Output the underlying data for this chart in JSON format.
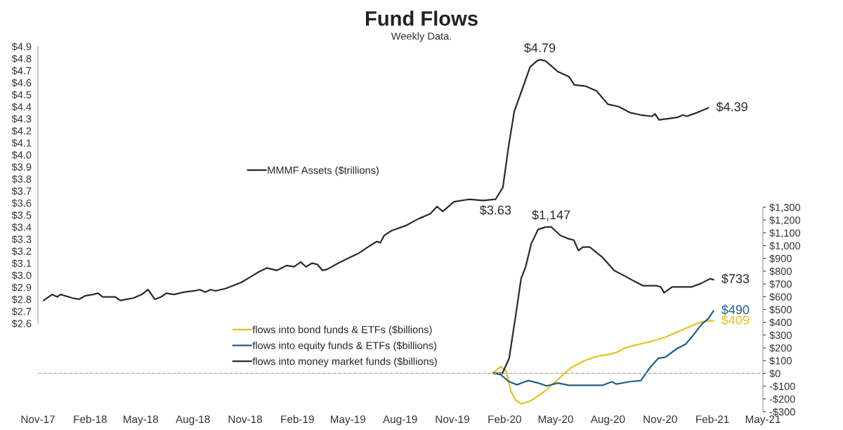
{
  "chart_data": [
    {
      "type": "line",
      "title": "Fund Flows",
      "annotations": [
        "Weekly Data."
      ],
      "xlim": [
        "2017-11-01",
        "2021-05-01"
      ],
      "tick_labels": "y",
      "ylim": [
        2.6,
        4.9
      ],
      "yticks": [
        {
          "value": 2.6,
          "label": "$2.6"
        },
        {
          "value": 2.7,
          "label": "$2.7"
        },
        {
          "value": 2.8,
          "label": "$2.8"
        },
        {
          "value": 2.9,
          "label": "$2.9"
        },
        {
          "value": 3.0,
          "label": "$3.0"
        },
        {
          "value": 3.1,
          "label": "$3.1"
        },
        {
          "value": 3.2,
          "label": "$3.2"
        },
        {
          "value": 3.3,
          "label": "$3.3"
        },
        {
          "value": 3.4,
          "label": "$3.4"
        },
        {
          "value": 3.5,
          "label": "$3.5"
        },
        {
          "value": 3.6,
          "label": "$3.6"
        },
        {
          "value": 3.7,
          "label": "$3.7"
        },
        {
          "value": 3.8,
          "label": "$3.8"
        },
        {
          "value": 3.9,
          "label": "$3.9"
        },
        {
          "value": 4.0,
          "label": "$4.0"
        },
        {
          "value": 4.1,
          "label": "$4.1"
        },
        {
          "value": 4.2,
          "label": "$4.2"
        },
        {
          "value": 4.3,
          "label": "$4.3"
        },
        {
          "value": 4.4,
          "label": "$4.4"
        },
        {
          "value": 4.5,
          "label": "$4.5"
        },
        {
          "value": 4.6,
          "label": "$4.6"
        },
        {
          "value": 4.7,
          "label": "$4.7"
        },
        {
          "value": 4.8,
          "label": "$4.8"
        },
        {
          "value": 4.9,
          "label": "$4.9"
        }
      ],
      "legend": "center",
      "series": [
        {
          "name": "MMMF Assets ($trillions)",
          "color": "#2b2b2b",
          "x": [
            "2017-11-11",
            "2017-11-26",
            "2017-12-05",
            "2017-12-11",
            "2018-01-01",
            "2018-01-12",
            "2018-01-24",
            "2018-02-06",
            "2018-02-15",
            "2018-02-23",
            "2018-03-17",
            "2018-03-26",
            "2018-04-18",
            "2018-05-03",
            "2018-05-14",
            "2018-05-26",
            "2018-06-06",
            "2018-06-15",
            "2018-06-29",
            "2018-07-17",
            "2018-08-04",
            "2018-08-13",
            "2018-08-23",
            "2018-09-01",
            "2018-09-10",
            "2018-09-28",
            "2018-10-25",
            "2018-11-12",
            "2018-11-26",
            "2018-12-09",
            "2018-12-27",
            "2019-01-13",
            "2019-01-26",
            "2019-02-07",
            "2019-02-16",
            "2019-02-27",
            "2019-03-08",
            "2019-03-17",
            "2019-03-26",
            "2019-04-14",
            "2019-05-01",
            "2019-05-19",
            "2019-06-07",
            "2019-06-21",
            "2019-06-27",
            "2019-07-04",
            "2019-07-17",
            "2019-08-10",
            "2019-09-03",
            "2019-09-23",
            "2019-10-05",
            "2019-10-15",
            "2019-11-04",
            "2019-11-30",
            "2019-12-25",
            "2020-01-16",
            "2020-01-29",
            "2020-02-08",
            "2020-02-18",
            "2020-03-02",
            "2020-03-17",
            "2020-03-29",
            "2020-04-03",
            "2020-04-13",
            "2020-05-05",
            "2020-05-24",
            "2020-06-03",
            "2020-06-23",
            "2020-07-12",
            "2020-08-01",
            "2020-08-20",
            "2020-09-09",
            "2020-09-29",
            "2020-10-18",
            "2020-10-23",
            "2020-10-30",
            "2020-12-01",
            "2020-12-11",
            "2020-12-18",
            "2021-01-05",
            "2021-01-25"
          ],
          "values": [
            2.79,
            2.84,
            2.82,
            2.84,
            2.81,
            2.8,
            2.83,
            2.84,
            2.85,
            2.82,
            2.82,
            2.79,
            2.81,
            2.84,
            2.88,
            2.8,
            2.82,
            2.85,
            2.84,
            2.86,
            2.87,
            2.88,
            2.86,
            2.88,
            2.87,
            2.89,
            2.94,
            2.99,
            3.03,
            3.06,
            3.04,
            3.08,
            3.07,
            3.11,
            3.07,
            3.1,
            3.09,
            3.04,
            3.05,
            3.1,
            3.14,
            3.18,
            3.24,
            3.28,
            3.27,
            3.33,
            3.37,
            3.41,
            3.47,
            3.51,
            3.57,
            3.53,
            3.61,
            3.63,
            3.62,
            3.63,
            3.73,
            4.07,
            4.36,
            4.53,
            4.73,
            4.78,
            4.79,
            4.78,
            4.69,
            4.65,
            4.58,
            4.57,
            4.53,
            4.42,
            4.4,
            4.35,
            4.33,
            4.32,
            4.34,
            4.29,
            4.31,
            4.33,
            4.32,
            4.35,
            4.39
          ],
          "value_labels": [
            null,
            null,
            null,
            null,
            null,
            null,
            null,
            null,
            null,
            null,
            null,
            null,
            null,
            null,
            null,
            null,
            null,
            null,
            null,
            null,
            null,
            null,
            null,
            null,
            null,
            null,
            null,
            null,
            null,
            null,
            null,
            null,
            null,
            null,
            null,
            null,
            null,
            null,
            null,
            null,
            null,
            null,
            null,
            null,
            null,
            null,
            null,
            null,
            null,
            null,
            null,
            null,
            null,
            null,
            null,
            "$3.63",
            null,
            null,
            null,
            null,
            null,
            null,
            "$4.79",
            null,
            null,
            null,
            null,
            null,
            null,
            null,
            null,
            null,
            null,
            null,
            null,
            null,
            null,
            null,
            null,
            null,
            "$4.39"
          ]
        }
      ]
    },
    {
      "type": "line",
      "xlim": [
        "2017-11-01",
        "2021-05-01"
      ],
      "xticks": [
        {
          "value": "2017-11-01",
          "label": "Nov-17"
        },
        {
          "value": "2018-02-01",
          "label": "Feb-18"
        },
        {
          "value": "2018-05-01",
          "label": "May-18"
        },
        {
          "value": "2018-08-01",
          "label": "Aug-18"
        },
        {
          "value": "2018-11-01",
          "label": "Nov-18"
        },
        {
          "value": "2019-02-01",
          "label": "Feb-19"
        },
        {
          "value": "2019-05-01",
          "label": "May-19"
        },
        {
          "value": "2019-08-01",
          "label": "Aug-19"
        },
        {
          "value": "2019-11-01",
          "label": "Nov-19"
        },
        {
          "value": "2020-02-01",
          "label": "Feb-20"
        },
        {
          "value": "2020-05-01",
          "label": "May-20"
        },
        {
          "value": "2020-08-01",
          "label": "Aug-20"
        },
        {
          "value": "2020-11-01",
          "label": "Nov-20"
        },
        {
          "value": "2021-02-01",
          "label": "Feb-21"
        },
        {
          "value": "2021-05-01",
          "label": "May-21"
        }
      ],
      "ylim": [
        -300,
        1300
      ],
      "yticks": [
        {
          "value": -300,
          "label": "-$300"
        },
        {
          "value": -200,
          "label": "-$200"
        },
        {
          "value": -100,
          "label": "-$100"
        },
        {
          "value": 0,
          "label": "$0"
        },
        {
          "value": 100,
          "label": "$100"
        },
        {
          "value": 200,
          "label": "$200"
        },
        {
          "value": 300,
          "label": "$300"
        },
        {
          "value": 400,
          "label": "$400"
        },
        {
          "value": 500,
          "label": "$500"
        },
        {
          "value": 600,
          "label": "$600"
        },
        {
          "value": 700,
          "label": "$700"
        },
        {
          "value": 800,
          "label": "$800"
        },
        {
          "value": 900,
          "label": "$900"
        },
        {
          "value": 1000,
          "label": "$1,000"
        },
        {
          "value": 1100,
          "label": "$1,100"
        },
        {
          "value": 1200,
          "label": "$1,200"
        },
        {
          "value": 1300,
          "label": "$1,300"
        }
      ],
      "ref_lines": [
        {
          "axis": "y",
          "value": 0,
          "color": "#aaaaaa",
          "line_style": "dashed"
        }
      ],
      "legend": "center",
      "series": [
        {
          "name": "flows into bond funds & ETFs ($billions)",
          "color": "#e8c21a",
          "x": [
            "2020-01-12",
            "2020-01-25",
            "2020-02-04",
            "2020-02-12",
            "2020-02-21",
            "2020-03-02",
            "2020-03-19",
            "2020-04-12",
            "2020-05-05",
            "2020-05-28",
            "2020-06-21",
            "2020-07-15",
            "2020-07-31",
            "2020-08-16",
            "2020-09-01",
            "2020-09-16",
            "2020-10-14",
            "2020-11-10",
            "2020-12-04",
            "2020-12-28",
            "2021-01-13",
            "2021-01-25",
            "2021-02-03"
          ],
          "values": [
            5,
            54,
            17,
            -139,
            -212,
            -240,
            -212,
            -139,
            -47,
            45,
            100,
            137,
            146,
            164,
            200,
            219,
            247,
            283,
            329,
            375,
            403,
            411,
            409
          ],
          "value_labels": [
            null,
            null,
            null,
            null,
            null,
            null,
            null,
            null,
            null,
            null,
            null,
            null,
            null,
            null,
            null,
            null,
            null,
            null,
            null,
            null,
            null,
            null,
            "$409"
          ]
        },
        {
          "name": "flows into equity funds & ETFs ($billions)",
          "color": "#1f5f8b",
          "x": [
            "2020-01-12",
            "2020-01-25",
            "2020-02-09",
            "2020-02-23",
            "2020-03-02",
            "2020-03-14",
            "2020-03-31",
            "2020-04-15",
            "2020-05-05",
            "2020-05-24",
            "2020-06-21",
            "2020-07-23",
            "2020-08-08",
            "2020-08-16",
            "2020-09-08",
            "2020-09-28",
            "2020-10-14",
            "2020-10-29",
            "2020-11-10",
            "2020-11-30",
            "2020-12-16",
            "2020-12-28",
            "2021-01-13",
            "2021-01-25",
            "2021-02-03"
          ],
          "values": [
            5,
            -10,
            -65,
            -89,
            -75,
            -56,
            -75,
            -98,
            -75,
            -93,
            -93,
            -93,
            -65,
            -84,
            -65,
            -56,
            45,
            119,
            127,
            192,
            229,
            292,
            384,
            429,
            490
          ],
          "value_labels": [
            null,
            null,
            null,
            null,
            null,
            null,
            null,
            null,
            null,
            null,
            null,
            null,
            null,
            null,
            null,
            null,
            null,
            null,
            null,
            null,
            null,
            null,
            null,
            null,
            "$490"
          ]
        },
        {
          "name": "flows into money market funds ($billions)",
          "color": "#2b2b2b",
          "x": [
            "2020-01-12",
            "2020-01-28",
            "2020-02-09",
            "2020-02-21",
            "2020-03-01",
            "2020-03-09",
            "2020-03-19",
            "2020-03-31",
            "2020-04-12",
            "2020-04-23",
            "2020-05-09",
            "2020-05-24",
            "2020-06-02",
            "2020-06-10",
            "2020-06-18",
            "2020-06-30",
            "2020-07-23",
            "2020-08-12",
            "2020-09-01",
            "2020-09-16",
            "2020-10-02",
            "2020-10-25",
            "2020-11-02",
            "2020-11-08",
            "2020-11-22",
            "2020-12-11",
            "2020-12-27",
            "2021-01-12",
            "2021-01-28",
            "2021-02-03"
          ],
          "values": [
            0,
            0,
            118,
            466,
            741,
            833,
            1016,
            1126,
            1144,
            1147,
            1080,
            1053,
            1043,
            961,
            988,
            988,
            906,
            805,
            759,
            722,
            686,
            686,
            677,
            631,
            677,
            677,
            677,
            704,
            741,
            733
          ],
          "value_labels": [
            null,
            null,
            null,
            null,
            null,
            null,
            null,
            null,
            null,
            "$1,147",
            null,
            null,
            null,
            null,
            null,
            null,
            null,
            null,
            null,
            null,
            null,
            null,
            null,
            null,
            null,
            null,
            null,
            null,
            null,
            "$733"
          ]
        }
      ]
    }
  ]
}
